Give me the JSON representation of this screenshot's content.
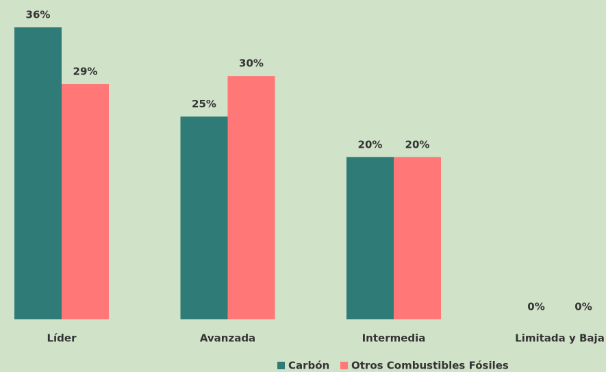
{
  "chart_data": {
    "type": "bar",
    "categories": [
      "Líder",
      "Avanzada",
      "Intermedia",
      "Limitada y Baja"
    ],
    "series": [
      {
        "name": "Carbón",
        "color": "#2e7b78",
        "values": [
          36,
          25,
          20,
          0
        ],
        "value_labels": [
          "36%",
          "25%",
          "20%",
          "0%"
        ]
      },
      {
        "name": "Otros Combustibles Fósiles",
        "color": "#ff7777",
        "values": [
          29,
          30,
          20,
          0
        ],
        "value_labels": [
          "29%",
          "30%",
          "20%",
          "0%"
        ]
      }
    ],
    "legend": "bottom"
  }
}
